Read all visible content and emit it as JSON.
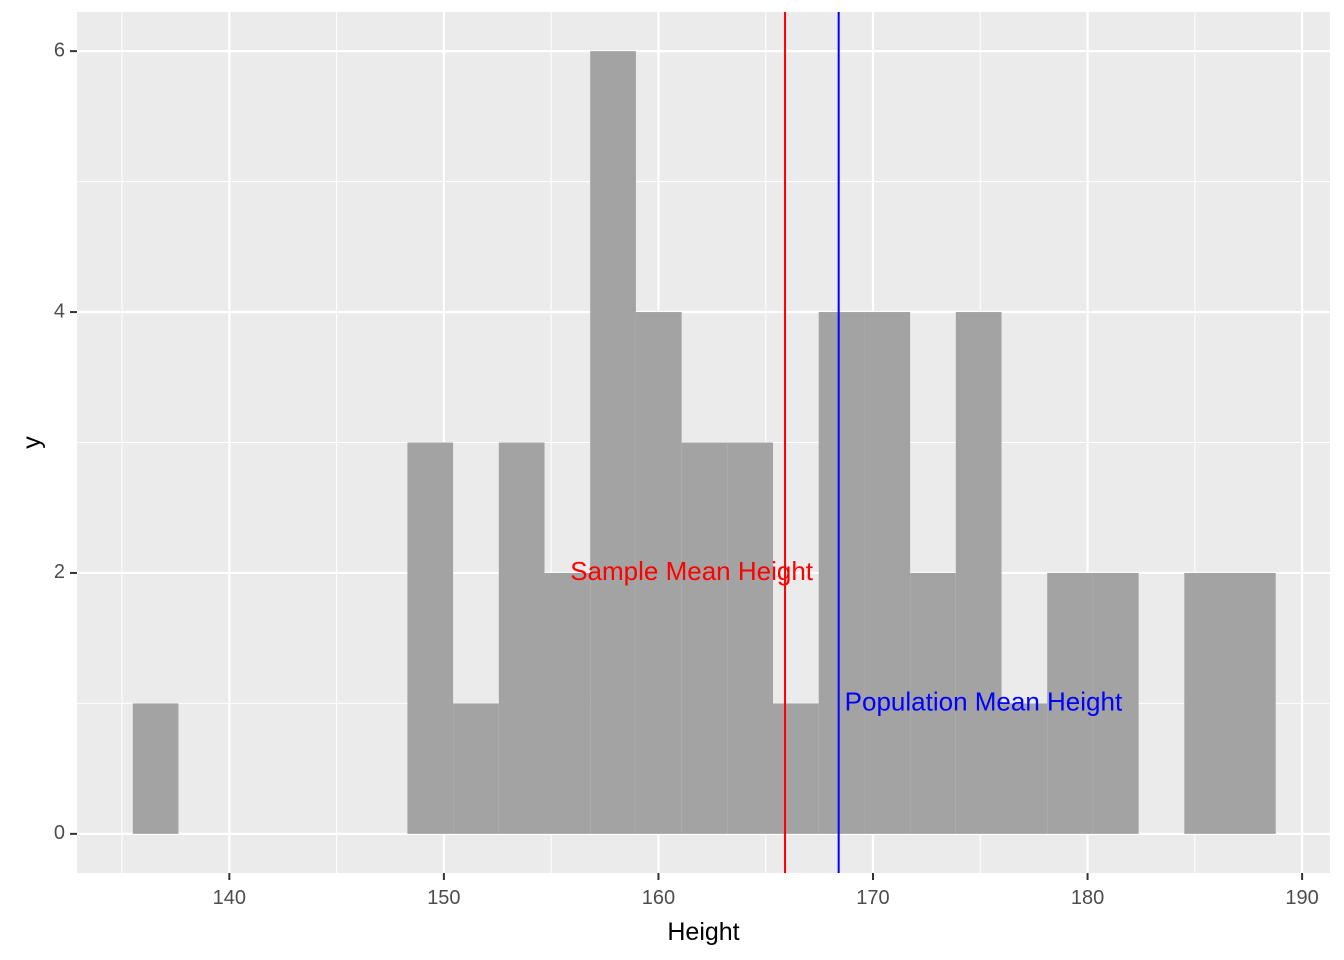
{
  "chart_data": {
    "type": "bar",
    "xlabel": "Height",
    "ylabel": "y",
    "xlim": [
      132.9,
      191.3
    ],
    "ylim": [
      -0.3,
      6.3
    ],
    "x_ticks": [
      140,
      150,
      160,
      170,
      180,
      190
    ],
    "y_ticks": [
      0,
      2,
      4,
      6
    ],
    "grid": true,
    "bar_color": "#a3a3a3",
    "bins": [
      {
        "x0": 135.5,
        "x1": 137.63,
        "count": 1
      },
      {
        "x0": 148.3,
        "x1": 150.43,
        "count": 3
      },
      {
        "x0": 150.43,
        "x1": 152.56,
        "count": 1
      },
      {
        "x0": 152.56,
        "x1": 154.69,
        "count": 3
      },
      {
        "x0": 154.69,
        "x1": 156.82,
        "count": 2
      },
      {
        "x0": 156.82,
        "x1": 158.95,
        "count": 6
      },
      {
        "x0": 158.95,
        "x1": 161.08,
        "count": 4
      },
      {
        "x0": 161.08,
        "x1": 163.21,
        "count": 3
      },
      {
        "x0": 163.21,
        "x1": 165.34,
        "count": 3
      },
      {
        "x0": 165.34,
        "x1": 167.47,
        "count": 1
      },
      {
        "x0": 167.47,
        "x1": 169.6,
        "count": 4
      },
      {
        "x0": 169.6,
        "x1": 171.73,
        "count": 4
      },
      {
        "x0": 171.73,
        "x1": 173.86,
        "count": 2
      },
      {
        "x0": 173.86,
        "x1": 175.99,
        "count": 4
      },
      {
        "x0": 175.99,
        "x1": 178.12,
        "count": 1
      },
      {
        "x0": 178.12,
        "x1": 180.25,
        "count": 2
      },
      {
        "x0": 180.25,
        "x1": 182.38,
        "count": 2
      },
      {
        "x0": 182.38,
        "x1": 184.51,
        "count": 0
      },
      {
        "x0": 184.51,
        "x1": 186.64,
        "count": 2
      },
      {
        "x0": 186.64,
        "x1": 188.77,
        "count": 2
      }
    ],
    "vlines": [
      {
        "x": 165.9,
        "color": "#ff0000",
        "label": "Sample Mean Height",
        "label_y": 2,
        "label_anchor": "end"
      },
      {
        "x": 168.4,
        "color": "#0000ff",
        "label": "Population Mean Height",
        "label_y": 1,
        "label_anchor": "start"
      }
    ]
  }
}
